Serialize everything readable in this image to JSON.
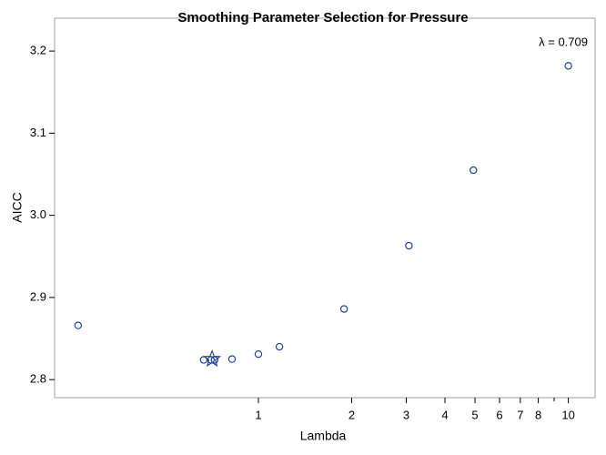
{
  "chart_data": {
    "type": "scatter",
    "title": "Smoothing Parameter Selection for Pressure",
    "x_label": "Lambda",
    "y_label": "AICC",
    "annotation": "λ = 0.709",
    "x_scale": "log",
    "x": [
      0.262,
      0.666,
      0.703,
      0.722,
      0.822,
      1.0,
      1.169,
      1.89,
      3.06,
      4.94,
      10
    ],
    "y": [
      2.866,
      2.824,
      2.824,
      2.824,
      2.825,
      2.831,
      2.84,
      2.886,
      2.963,
      3.055,
      3.182
    ],
    "color": "#1f3f8f",
    "selected": {
      "x": 0.709,
      "y": 2.825
    },
    "xlim": [
      0.22,
      12.2
    ],
    "ylim": [
      2.778,
      3.24
    ],
    "xticks": [
      1,
      2,
      3,
      4,
      5,
      6,
      7,
      8,
      10
    ],
    "xminorticks": [
      9
    ],
    "yticks": [
      2.8,
      2.9,
      {
        "value": 3.0,
        "label": "3.0"
      },
      3.1,
      3.2
    ]
  }
}
